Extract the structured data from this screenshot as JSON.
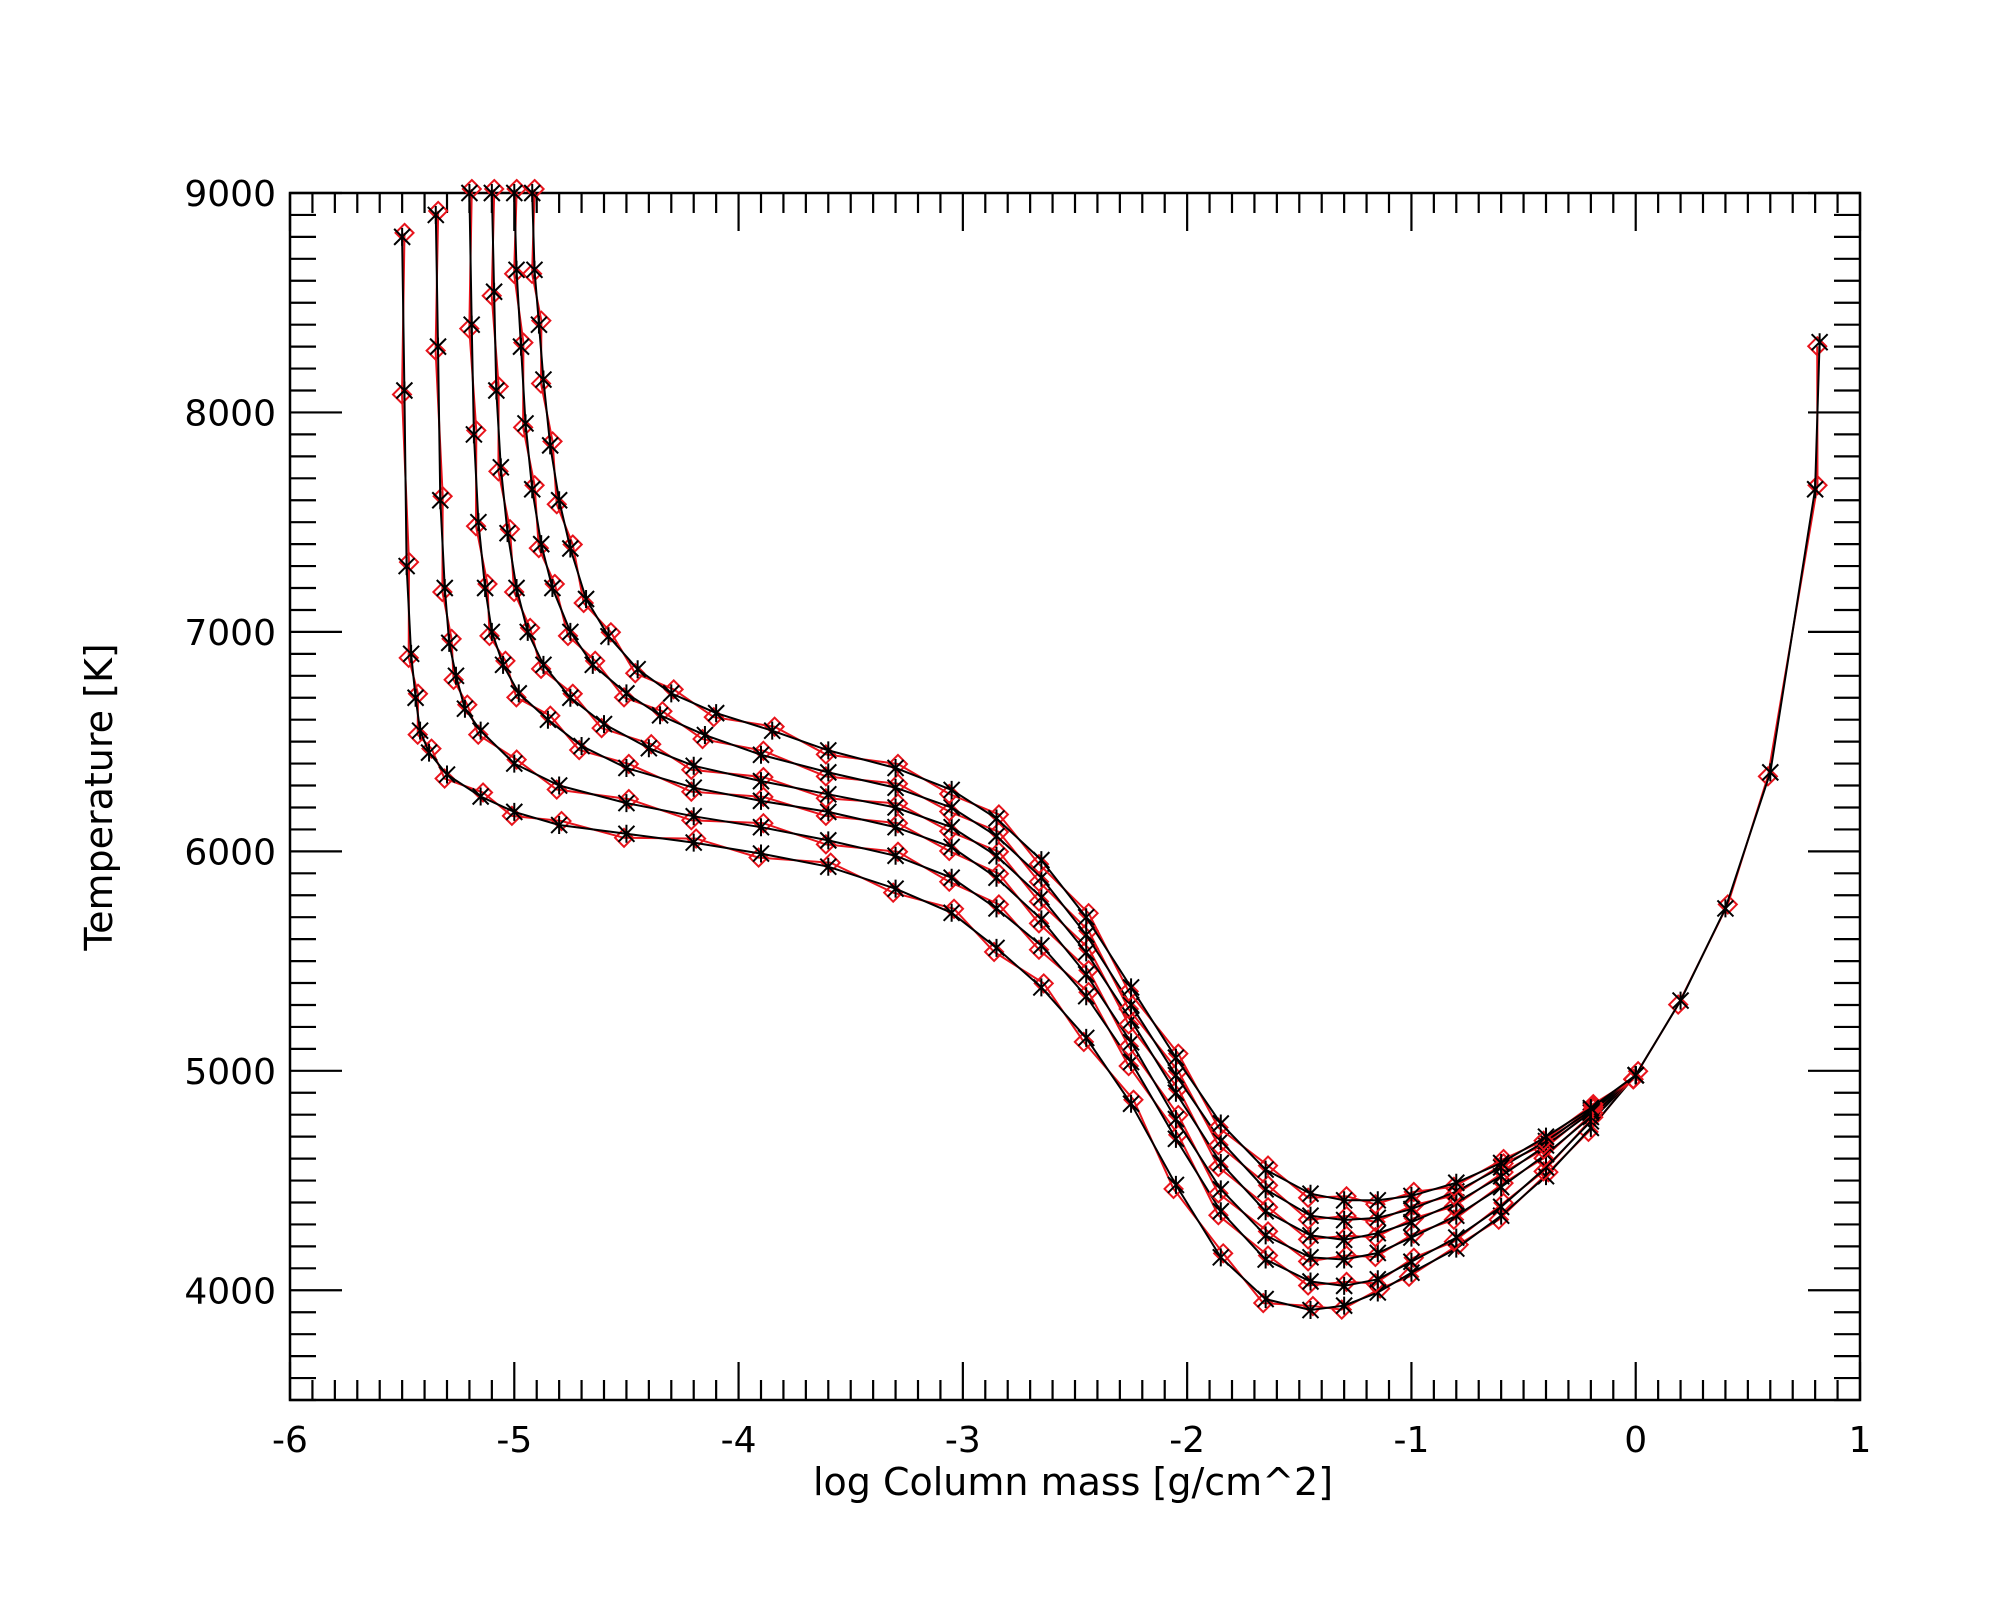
{
  "chart_data": {
    "type": "line",
    "title": "",
    "xlabel": "log Column mass [g/cm^2]",
    "ylabel": "Temperature [K]",
    "xlim": [
      -6,
      1
    ],
    "ylim": [
      3500,
      9000
    ],
    "x_ticks": [
      -6,
      -5,
      -4,
      -3,
      -2,
      -1,
      0,
      1
    ],
    "x_tick_labels": [
      "-6",
      "-5",
      "-4",
      "-3",
      "-2",
      "-1",
      "0",
      "1"
    ],
    "y_ticks": [
      4000,
      5000,
      6000,
      7000,
      8000,
      9000
    ],
    "y_tick_labels": [
      "4000",
      "5000",
      "6000",
      "7000",
      "8000",
      "9000"
    ],
    "grid": false,
    "legend": "none",
    "colors": {
      "black": "#000000",
      "red": "#e8141c"
    },
    "series": [
      {
        "color": "#000000",
        "marker": "asterisk",
        "x": [
          -5.5,
          -5.49,
          -5.48,
          -5.46,
          -5.44,
          -5.42,
          -5.38,
          -5.3,
          -5.15,
          -5.0,
          -4.8,
          -4.5,
          -4.2,
          -3.9,
          -3.6,
          -3.3,
          -3.05,
          -2.85,
          -2.65,
          -2.45,
          -2.25,
          -2.05,
          -1.85,
          -1.65,
          -1.45,
          -1.3,
          -1.15,
          -1.0,
          -0.8,
          -0.6,
          -0.4,
          -0.2,
          0.0,
          0.2,
          0.4,
          0.6,
          0.8,
          0.82
        ],
        "y": [
          8800,
          8100,
          7300,
          6900,
          6700,
          6550,
          6450,
          6350,
          6250,
          6180,
          6120,
          6080,
          6040,
          5990,
          5930,
          5830,
          5720,
          5560,
          5380,
          5150,
          4850,
          4480,
          4150,
          3960,
          3910,
          3930,
          3990,
          4080,
          4190,
          4340,
          4520,
          4740,
          4980,
          5320,
          5740,
          6360,
          7650,
          8320
        ]
      },
      {
        "color": "#000000",
        "marker": "asterisk",
        "x": [
          -5.35,
          -5.34,
          -5.33,
          -5.31,
          -5.29,
          -5.26,
          -5.22,
          -5.15,
          -5.0,
          -4.8,
          -4.5,
          -4.2,
          -3.9,
          -3.6,
          -3.3,
          -3.05,
          -2.85,
          -2.65,
          -2.45,
          -2.25,
          -2.05,
          -1.85,
          -1.65,
          -1.45,
          -1.3,
          -1.15,
          -1.0,
          -0.8,
          -0.6,
          -0.4,
          -0.2,
          0.0
        ],
        "y": [
          8900,
          8300,
          7600,
          7200,
          6950,
          6800,
          6650,
          6550,
          6400,
          6300,
          6220,
          6160,
          6110,
          6050,
          5980,
          5880,
          5740,
          5570,
          5340,
          5040,
          4690,
          4360,
          4140,
          4040,
          4020,
          4050,
          4130,
          4240,
          4380,
          4560,
          4770,
          4980
        ]
      },
      {
        "color": "#000000",
        "marker": "asterisk",
        "x": [
          -5.2,
          -5.19,
          -5.18,
          -5.16,
          -5.13,
          -5.1,
          -5.05,
          -4.98,
          -4.85,
          -4.7,
          -4.5,
          -4.2,
          -3.9,
          -3.6,
          -3.3,
          -3.05,
          -2.85,
          -2.65,
          -2.45,
          -2.25,
          -2.05,
          -1.85,
          -1.65,
          -1.45,
          -1.3,
          -1.15,
          -1.0,
          -0.8,
          -0.6,
          -0.4,
          -0.2,
          0.0
        ],
        "y": [
          9000,
          8400,
          7900,
          7500,
          7200,
          7000,
          6850,
          6720,
          6600,
          6480,
          6380,
          6290,
          6230,
          6180,
          6110,
          6020,
          5880,
          5690,
          5440,
          5130,
          4780,
          4460,
          4250,
          4150,
          4140,
          4170,
          4240,
          4340,
          4470,
          4620,
          4790,
          4980
        ]
      },
      {
        "color": "#000000",
        "marker": "asterisk",
        "x": [
          -5.1,
          -5.09,
          -5.08,
          -5.06,
          -5.03,
          -4.99,
          -4.94,
          -4.87,
          -4.75,
          -4.6,
          -4.4,
          -4.2,
          -3.9,
          -3.6,
          -3.3,
          -3.05,
          -2.85,
          -2.65,
          -2.45,
          -2.25,
          -2.05,
          -1.85,
          -1.65,
          -1.45,
          -1.3,
          -1.15,
          -1.0,
          -0.8,
          -0.6,
          -0.4,
          -0.2,
          0.0
        ],
        "y": [
          9000,
          8550,
          8100,
          7750,
          7450,
          7200,
          7000,
          6850,
          6700,
          6580,
          6470,
          6390,
          6320,
          6260,
          6200,
          6110,
          5980,
          5790,
          5540,
          5230,
          4900,
          4580,
          4360,
          4250,
          4230,
          4260,
          4310,
          4400,
          4520,
          4660,
          4810,
          4980
        ]
      },
      {
        "color": "#000000",
        "marker": "asterisk",
        "x": [
          -5.0,
          -4.99,
          -4.97,
          -4.95,
          -4.92,
          -4.88,
          -4.83,
          -4.75,
          -4.65,
          -4.5,
          -4.35,
          -4.15,
          -3.9,
          -3.6,
          -3.3,
          -3.05,
          -2.85,
          -2.65,
          -2.45,
          -2.25,
          -2.05,
          -1.85,
          -1.65,
          -1.45,
          -1.3,
          -1.15,
          -1.0,
          -0.8,
          -0.6,
          -0.4,
          -0.2,
          0.0
        ],
        "y": [
          9000,
          8650,
          8300,
          7950,
          7650,
          7400,
          7200,
          7000,
          6850,
          6720,
          6620,
          6530,
          6440,
          6360,
          6290,
          6200,
          6070,
          5880,
          5620,
          5300,
          4980,
          4680,
          4460,
          4340,
          4320,
          4330,
          4370,
          4450,
          4560,
          4680,
          4820,
          4980
        ]
      },
      {
        "color": "#000000",
        "marker": "asterisk",
        "x": [
          -4.92,
          -4.91,
          -4.89,
          -4.87,
          -4.84,
          -4.8,
          -4.75,
          -4.68,
          -4.58,
          -4.45,
          -4.3,
          -4.1,
          -3.85,
          -3.6,
          -3.3,
          -3.05,
          -2.85,
          -2.65,
          -2.45,
          -2.25,
          -2.05,
          -1.85,
          -1.65,
          -1.45,
          -1.3,
          -1.15,
          -1.0,
          -0.8,
          -0.6,
          -0.4,
          -0.2,
          0.0
        ],
        "y": [
          9000,
          8650,
          8400,
          8150,
          7850,
          7600,
          7380,
          7150,
          6980,
          6830,
          6720,
          6630,
          6550,
          6460,
          6380,
          6280,
          6150,
          5960,
          5700,
          5380,
          5060,
          4760,
          4550,
          4440,
          4410,
          4410,
          4430,
          4490,
          4580,
          4700,
          4830,
          4980
        ]
      }
    ]
  }
}
